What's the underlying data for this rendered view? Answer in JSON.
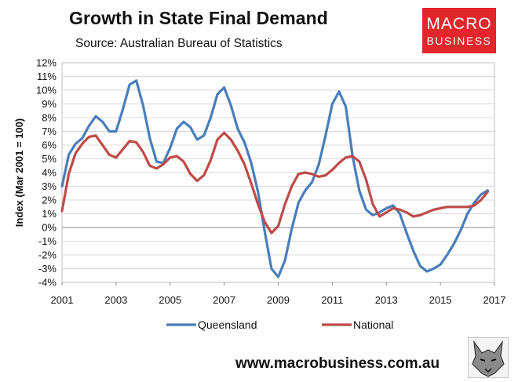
{
  "header": {
    "title": "Growth in State Final Demand",
    "source": "Source: Australian Bureau of Statistics"
  },
  "logo": {
    "line1": "MACRO",
    "line2": "BUSINESS"
  },
  "footer": {
    "website": "www.macrobusiness.com.au"
  },
  "colors": {
    "queensland": "#4a7ebb",
    "national": "#be4b48",
    "brand": "#e3262b"
  },
  "chart_data": {
    "type": "line",
    "title": "Growth in State Final Demand",
    "ylabel": "Index (Mar 2001 = 100)",
    "xlabel": "",
    "xlim": [
      2001,
      2017
    ],
    "ylim": [
      -4,
      12
    ],
    "x_ticks": [
      2001,
      2003,
      2005,
      2007,
      2009,
      2011,
      2013,
      2015,
      2017
    ],
    "x_tick_labels": [
      "2001",
      "2003",
      "2005",
      "2007",
      "2009",
      "2011",
      "2013",
      "2015",
      "2017"
    ],
    "y_ticks": [
      -4,
      -3,
      -2,
      -1,
      0,
      1,
      2,
      3,
      4,
      5,
      6,
      7,
      8,
      9,
      10,
      11,
      12
    ],
    "y_tick_labels": [
      "-4%",
      "-3%",
      "-2%",
      "-1%",
      "0%",
      "1%",
      "2%",
      "3%",
      "4%",
      "5%",
      "6%",
      "7%",
      "8%",
      "9%",
      "10%",
      "11%",
      "12%"
    ],
    "legend_position": "bottom",
    "series": [
      {
        "name": "Queensland",
        "color": "#4a7ebb",
        "x": [
          2001.0,
          2001.25,
          2001.5,
          2001.75,
          2002.0,
          2002.25,
          2002.5,
          2002.75,
          2003.0,
          2003.25,
          2003.5,
          2003.75,
          2004.0,
          2004.25,
          2004.5,
          2004.75,
          2005.0,
          2005.25,
          2005.5,
          2005.75,
          2006.0,
          2006.25,
          2006.5,
          2006.75,
          2007.0,
          2007.25,
          2007.5,
          2007.75,
          2008.0,
          2008.25,
          2008.5,
          2008.75,
          2009.0,
          2009.25,
          2009.5,
          2009.75,
          2010.0,
          2010.25,
          2010.5,
          2010.75,
          2011.0,
          2011.25,
          2011.5,
          2011.75,
          2012.0,
          2012.25,
          2012.5,
          2012.75,
          2013.0,
          2013.25,
          2013.5,
          2013.75,
          2014.0,
          2014.25,
          2014.5,
          2014.75,
          2015.0,
          2015.25,
          2015.5,
          2015.75,
          2016.0,
          2016.25,
          2016.5,
          2016.75
        ],
        "values": [
          3.0,
          5.3,
          6.1,
          6.5,
          7.4,
          8.1,
          7.7,
          7.0,
          7.0,
          8.6,
          10.4,
          10.7,
          8.9,
          6.5,
          4.8,
          4.7,
          5.8,
          7.2,
          7.7,
          7.3,
          6.4,
          6.7,
          8.0,
          9.7,
          10.2,
          8.9,
          7.2,
          6.2,
          4.7,
          2.6,
          -0.3,
          -3.0,
          -3.6,
          -2.4,
          -0.1,
          1.8,
          2.7,
          3.3,
          4.6,
          6.7,
          9.0,
          9.9,
          8.8,
          5.2,
          2.7,
          1.3,
          0.9,
          1.1,
          1.4,
          1.6,
          1.0,
          -0.4,
          -1.7,
          -2.8,
          -3.2,
          -3.0,
          -2.7,
          -2.0,
          -1.2,
          -0.2,
          1.0,
          1.8,
          2.4,
          2.7
        ]
      },
      {
        "name": "National",
        "color": "#be4b48",
        "x": [
          2001.0,
          2001.25,
          2001.5,
          2001.75,
          2002.0,
          2002.25,
          2002.5,
          2002.75,
          2003.0,
          2003.25,
          2003.5,
          2003.75,
          2004.0,
          2004.25,
          2004.5,
          2004.75,
          2005.0,
          2005.25,
          2005.5,
          2005.75,
          2006.0,
          2006.25,
          2006.5,
          2006.75,
          2007.0,
          2007.25,
          2007.5,
          2007.75,
          2008.0,
          2008.25,
          2008.5,
          2008.75,
          2009.0,
          2009.25,
          2009.5,
          2009.75,
          2010.0,
          2010.25,
          2010.5,
          2010.75,
          2011.0,
          2011.25,
          2011.5,
          2011.75,
          2012.0,
          2012.25,
          2012.5,
          2012.75,
          2013.0,
          2013.25,
          2013.5,
          2013.75,
          2014.0,
          2014.25,
          2014.5,
          2014.75,
          2015.0,
          2015.25,
          2015.5,
          2015.75,
          2016.0,
          2016.25,
          2016.5,
          2016.75
        ],
        "values": [
          1.2,
          3.9,
          5.4,
          6.1,
          6.6,
          6.7,
          6.0,
          5.3,
          5.1,
          5.7,
          6.3,
          6.2,
          5.5,
          4.5,
          4.3,
          4.6,
          5.1,
          5.2,
          4.8,
          3.9,
          3.4,
          3.8,
          4.9,
          6.4,
          6.9,
          6.4,
          5.6,
          4.6,
          3.2,
          1.7,
          0.4,
          -0.4,
          0.1,
          1.7,
          3.0,
          3.9,
          4.0,
          3.9,
          3.7,
          3.8,
          4.2,
          4.7,
          5.1,
          5.2,
          4.8,
          3.5,
          1.7,
          0.8,
          1.1,
          1.4,
          1.3,
          1.1,
          0.8,
          0.9,
          1.1,
          1.3,
          1.4,
          1.5,
          1.5,
          1.5,
          1.5,
          1.6,
          2.0,
          2.6
        ]
      }
    ]
  }
}
